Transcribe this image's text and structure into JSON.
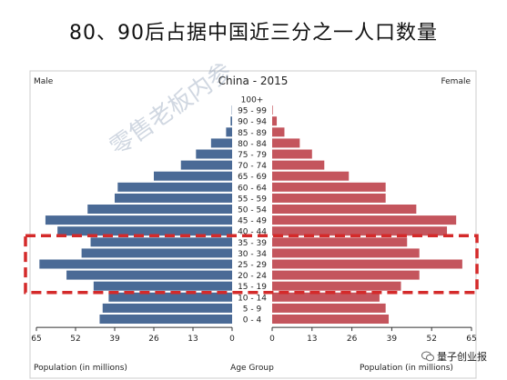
{
  "page": {
    "title": "80、90后占据中国近三分之一人口数量",
    "brand": "量子创业报"
  },
  "chart_data": {
    "type": "bar",
    "title": "China - 2015",
    "left_label": "Male",
    "right_label": "Female",
    "center_label": "Age Group",
    "xlabel_left": "Population (in millions)",
    "xlabel_right": "Population (in millions)",
    "xlim": [
      0,
      65
    ],
    "ticks": [
      "65",
      "52",
      "39",
      "26",
      "13",
      "0",
      "0",
      "13",
      "26",
      "39",
      "52",
      "65"
    ],
    "tick_values_left": [
      65,
      52,
      39,
      26,
      13,
      0
    ],
    "tick_values_right": [
      0,
      13,
      26,
      39,
      52,
      65
    ],
    "categories": [
      "100+",
      "95 - 99",
      "90 - 94",
      "85 - 89",
      "80 - 84",
      "75 - 79",
      "70 - 74",
      "65 - 69",
      "60 - 64",
      "55 - 59",
      "50 - 54",
      "45 - 49",
      "40 - 44",
      "35 - 39",
      "30 - 34",
      "25 - 29",
      "20 - 24",
      "15 - 19",
      "10 - 14",
      "5 - 9",
      "0 - 4"
    ],
    "series": [
      {
        "name": "Male",
        "values": [
          0,
          0.1,
          0.5,
          2,
          7,
          12,
          17,
          26,
          38,
          39,
          48,
          62,
          58,
          47,
          50,
          64,
          55,
          46,
          41,
          43,
          44
        ],
        "color": "#4a6a96"
      },
      {
        "name": "Female",
        "values": [
          0,
          0.2,
          1.5,
          4,
          9,
          13,
          17,
          25,
          37,
          37,
          47,
          60,
          57,
          44,
          48,
          62,
          48,
          42,
          35,
          37,
          38
        ],
        "color": "#c4555d"
      }
    ],
    "highlight_ranges": [
      [
        "35 - 39",
        "15 - 19"
      ]
    ]
  },
  "watermark": "零售老板内参"
}
